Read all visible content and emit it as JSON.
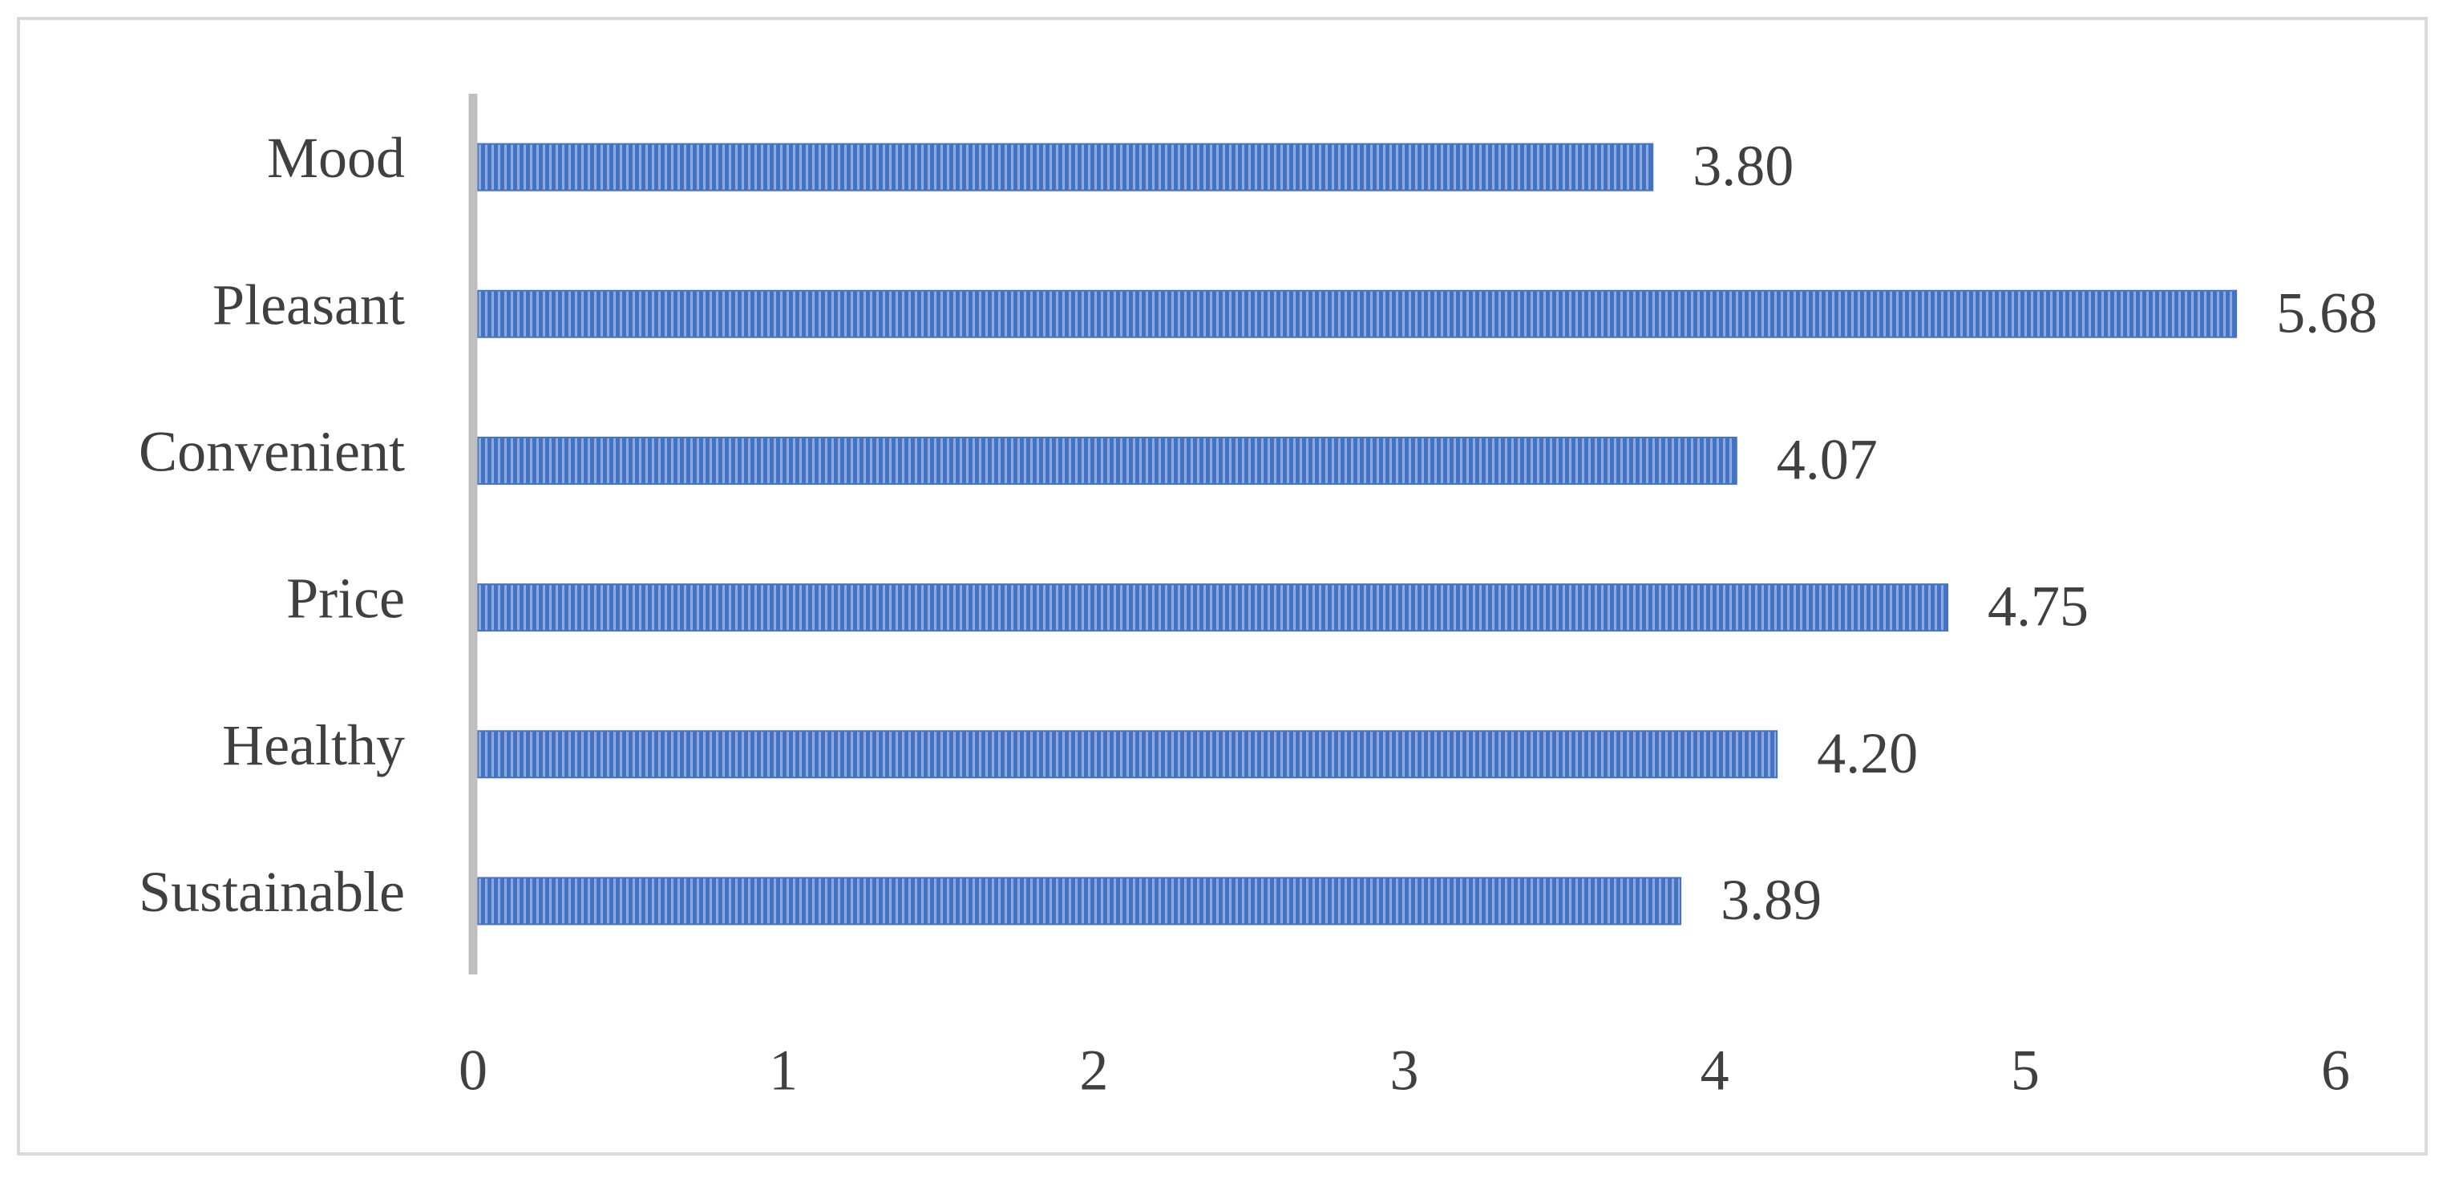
{
  "chart_data": {
    "type": "hbar",
    "categories": [
      "Mood",
      "Pleasant",
      "Convenient",
      "Price",
      "Healthy",
      "Sustainable"
    ],
    "values": [
      3.8,
      5.68,
      4.07,
      4.75,
      4.2,
      3.89
    ],
    "value_labels": [
      "3.80",
      "5.68",
      "4.07",
      "4.75",
      "4.20",
      "3.89"
    ],
    "color": "#4472c4",
    "xlim": [
      0,
      6
    ],
    "xticks": [
      0,
      1,
      2,
      3,
      4,
      5,
      6
    ],
    "grid": false
  }
}
